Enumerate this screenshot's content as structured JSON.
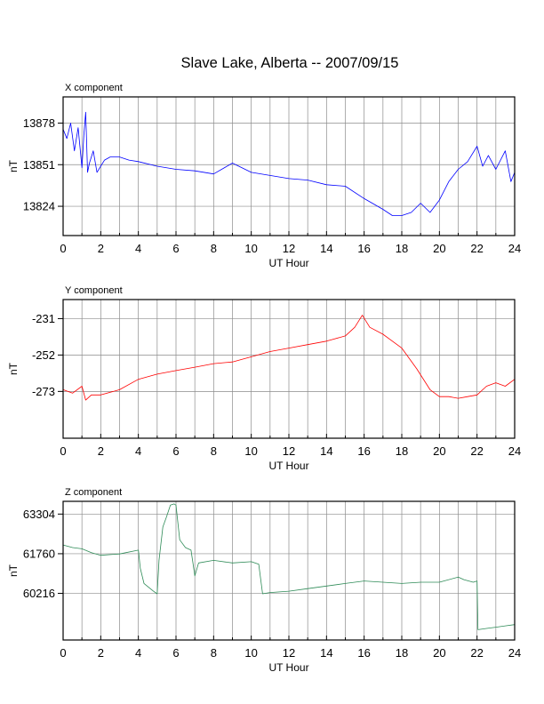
{
  "title": "Slave Lake, Alberta -- 2007/09/15",
  "chart_data": [
    {
      "type": "line",
      "subplot_title": "X component",
      "xlabel": "UT Hour",
      "ylabel": "nT",
      "xlim": [
        0,
        24
      ],
      "ylim": [
        13805,
        13895
      ],
      "xticks": [
        "0",
        "2",
        "4",
        "6",
        "8",
        "10",
        "12",
        "14",
        "16",
        "18",
        "20",
        "22",
        "24"
      ],
      "yticks": [
        13824,
        13851,
        13878
      ],
      "grid": true,
      "series": [
        {
          "color": "#0000ff",
          "x": [
            0,
            0.2,
            0.4,
            0.6,
            0.8,
            1.0,
            1.1,
            1.2,
            1.3,
            1.4,
            1.6,
            1.8,
            2.0,
            2.2,
            2.5,
            3.0,
            3.5,
            4.0,
            5.0,
            6.0,
            7.0,
            8.0,
            9.0,
            10.0,
            11.0,
            12.0,
            13.0,
            14.0,
            15.0,
            16.0,
            17.0,
            17.5,
            18.0,
            18.5,
            19.0,
            19.5,
            20.0,
            20.5,
            21.0,
            21.5,
            22.0,
            22.3,
            22.6,
            23.0,
            23.5,
            23.8,
            24.0
          ],
          "y": [
            13874,
            13868,
            13878,
            13860,
            13875,
            13849,
            13870,
            13885,
            13846,
            13852,
            13860,
            13846,
            13850,
            13854,
            13856,
            13856,
            13854,
            13853,
            13850,
            13848,
            13847,
            13845,
            13852,
            13846,
            13844,
            13842,
            13841,
            13838,
            13837,
            13829,
            13822,
            13818,
            13818,
            13820,
            13826,
            13820,
            13828,
            13840,
            13848,
            13853,
            13863,
            13850,
            13857,
            13848,
            13860,
            13840,
            13846
          ]
        }
      ]
    },
    {
      "type": "line",
      "subplot_title": "Y component",
      "xlabel": "UT Hour",
      "ylabel": "nT",
      "xlim": [
        0,
        24
      ],
      "ylim": [
        -300,
        -220
      ],
      "xticks": [
        "0",
        "2",
        "4",
        "6",
        "8",
        "10",
        "12",
        "14",
        "16",
        "18",
        "20",
        "22",
        "24"
      ],
      "yticks": [
        -231,
        -252,
        -273
      ],
      "grid": true,
      "series": [
        {
          "color": "#ff0000",
          "x": [
            0,
            0.5,
            1.0,
            1.2,
            1.5,
            2.0,
            3.0,
            4.0,
            5.0,
            6.0,
            7.0,
            8.0,
            9.0,
            10.0,
            11.0,
            12.0,
            13.0,
            14.0,
            15.0,
            15.5,
            15.9,
            16.3,
            17.0,
            18.0,
            18.8,
            19.5,
            20.0,
            20.5,
            21.0,
            21.5,
            22.0,
            22.5,
            23.0,
            23.5,
            24.0
          ],
          "y": [
            -272,
            -274,
            -270,
            -278,
            -275,
            -275,
            -272,
            -266,
            -263,
            -261,
            -259,
            -257,
            -256,
            -253,
            -250,
            -248,
            -246,
            -244,
            -241,
            -236,
            -229,
            -236,
            -240,
            -248,
            -260,
            -272,
            -276,
            -276,
            -277,
            -276,
            -275,
            -270,
            -268,
            -270,
            -266
          ]
        }
      ]
    },
    {
      "type": "line",
      "subplot_title": "Z component",
      "xlabel": "UT Hour",
      "ylabel": "nT",
      "xlim": [
        0,
        24
      ],
      "ylim": [
        58400,
        63800
      ],
      "xticks": [
        "0",
        "2",
        "4",
        "6",
        "8",
        "10",
        "12",
        "14",
        "16",
        "18",
        "20",
        "22",
        "24"
      ],
      "yticks": [
        63304,
        61760,
        60216
      ],
      "grid": true,
      "series": [
        {
          "color": "#2e8b57",
          "x": [
            0,
            0.5,
            1.0,
            1.5,
            2.0,
            3.0,
            4.0,
            4.1,
            4.3,
            4.8,
            5.0,
            5.1,
            5.3,
            5.5,
            5.7,
            5.9,
            6.0,
            6.2,
            6.5,
            6.8,
            7.0,
            7.2,
            8.0,
            9.0,
            10.0,
            10.4,
            10.6,
            11.0,
            12.0,
            13.0,
            14.0,
            15.0,
            16.0,
            17.0,
            18.0,
            19.0,
            20.0,
            21.0,
            21.3,
            21.8,
            22.0,
            22.05,
            22.5,
            23.0,
            23.5,
            24.0
          ],
          "y": [
            62100,
            62000,
            61950,
            61800,
            61700,
            61750,
            61900,
            61200,
            60600,
            60300,
            60200,
            61500,
            62800,
            63200,
            63650,
            63700,
            63650,
            62300,
            62000,
            61900,
            60900,
            61400,
            61500,
            61400,
            61450,
            61350,
            60200,
            60250,
            60300,
            60400,
            60500,
            60600,
            60700,
            60650,
            60600,
            60650,
            60650,
            60850,
            60750,
            60650,
            60700,
            58800,
            58850,
            58900,
            58950,
            59000
          ]
        }
      ]
    }
  ]
}
